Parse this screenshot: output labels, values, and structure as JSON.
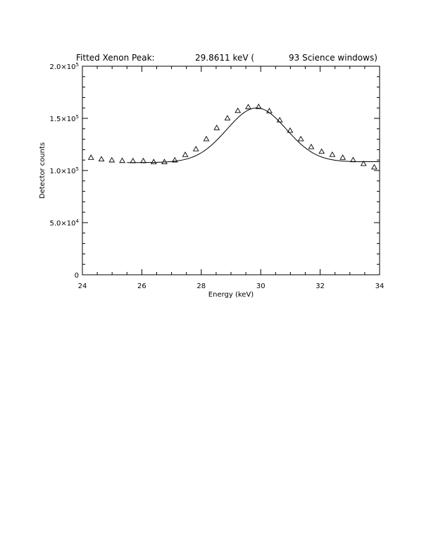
{
  "chart_data": {
    "type": "scatter",
    "title_parts": [
      "Fitted Xenon Peak:",
      "29.8611 keV (",
      "93 Science windows)"
    ],
    "xlabel": "Energy (keV)",
    "ylabel": "Detector counts",
    "xlim": [
      24,
      34
    ],
    "ylim": [
      0,
      200000
    ],
    "grid": false,
    "x_ticks": [
      24,
      26,
      28,
      30,
      32,
      34
    ],
    "x_tick_labels": [
      "24",
      "26",
      "28",
      "30",
      "32",
      "34"
    ],
    "y_ticks": [
      0,
      50000,
      100000,
      150000,
      200000
    ],
    "y_tick_labels": [
      {
        "mantissa": "0",
        "exponent": ""
      },
      {
        "mantissa": "5.0×10",
        "exponent": "4"
      },
      {
        "mantissa": "1.0×10",
        "exponent": "5"
      },
      {
        "mantissa": "1.5×10",
        "exponent": "5"
      },
      {
        "mantissa": "2.0×10",
        "exponent": "5"
      }
    ],
    "series": [
      {
        "kind": "points",
        "marker": "open-triangle",
        "x": [
          24.29,
          24.64,
          24.99,
          25.34,
          25.7,
          26.05,
          26.4,
          26.76,
          27.11,
          27.46,
          27.82,
          28.17,
          28.52,
          28.88,
          29.23,
          29.58,
          29.93,
          30.29,
          30.64,
          30.99,
          31.35,
          31.7,
          32.05,
          32.41,
          32.76,
          33.11,
          33.46,
          33.82
        ],
        "y": [
          112500,
          111000,
          110000,
          109500,
          109300,
          109300,
          108300,
          108300,
          110000,
          115200,
          120700,
          130300,
          141000,
          150300,
          157400,
          161000,
          161200,
          157200,
          148400,
          138400,
          130300,
          122700,
          118300,
          115300,
          112500,
          110200,
          106600,
          103300
        ]
      },
      {
        "kind": "fit-curve",
        "model": "gaussian-plus-linear",
        "center": 29.8611,
        "amplitude": 52000,
        "sigma": 1.0,
        "baseline_a": 108000,
        "baseline_b": 100
      }
    ]
  }
}
